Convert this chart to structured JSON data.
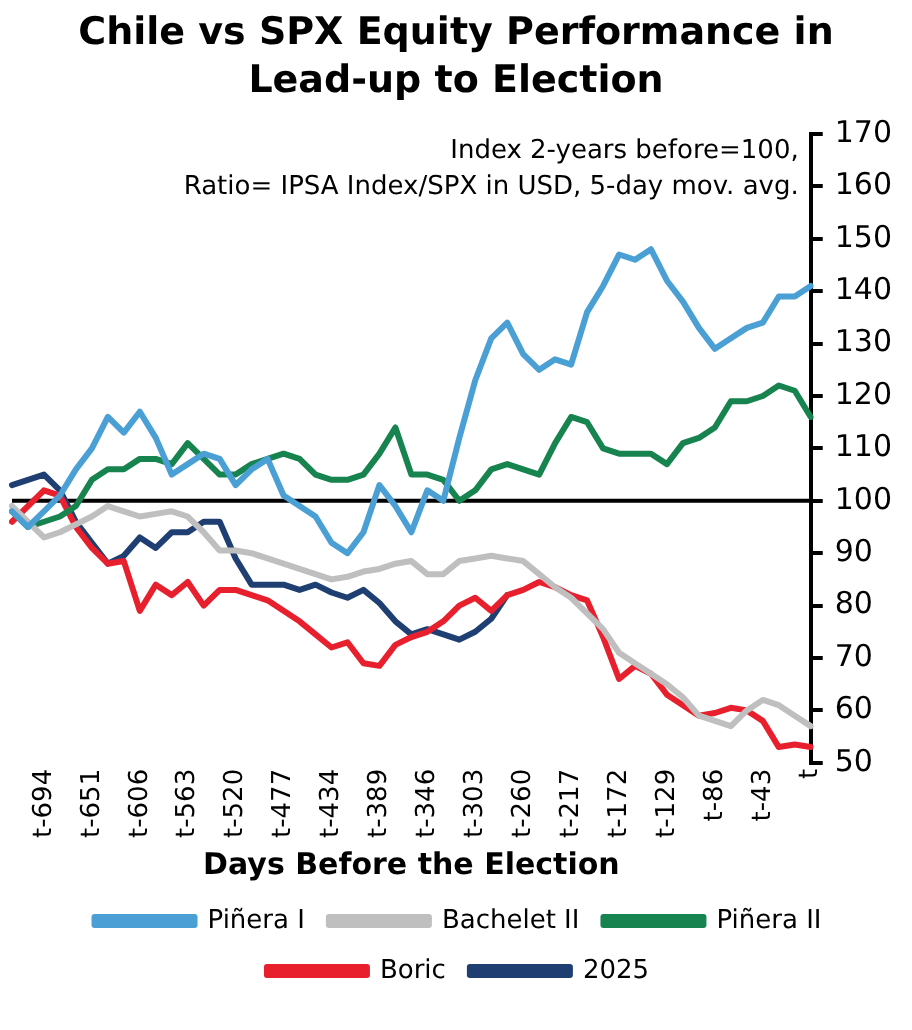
{
  "chart_data": {
    "type": "line",
    "title": "Chile vs SPX Equity Performance in Lead-up to Election",
    "xlabel": "Days Before the Election",
    "annotations": [
      "Index 2-years before=100,",
      "Ratio= IPSA Index/SPX in USD, 5-day mov. avg."
    ],
    "categories": [
      null,
      null,
      "t-694",
      null,
      null,
      "t-651",
      null,
      null,
      "t-606",
      null,
      null,
      "t-563",
      null,
      null,
      "t-520",
      null,
      null,
      "t-477",
      null,
      null,
      "t-434",
      null,
      null,
      "t-389",
      null,
      null,
      "t-346",
      null,
      null,
      "t-303",
      null,
      null,
      "t-260",
      null,
      null,
      "t-217",
      null,
      null,
      "t-172",
      null,
      null,
      "t-129",
      null,
      null,
      "t-86",
      null,
      null,
      "t-43",
      null,
      null,
      "t"
    ],
    "ylim": [
      50,
      170
    ],
    "yticks": [
      50,
      60,
      70,
      80,
      90,
      100,
      110,
      120,
      130,
      140,
      150,
      160,
      170
    ],
    "ref_lines": [
      {
        "axis": "y",
        "value": 100,
        "color": "#000000"
      }
    ],
    "grid": false,
    "legend": "bottom",
    "marker": "none",
    "line_style": "solid",
    "series": [
      {
        "name": "Piñera I",
        "color": "#4a9fd4",
        "values": [
          98,
          95,
          98,
          101,
          106,
          110,
          116,
          113,
          117,
          112,
          105,
          107,
          109,
          108,
          103,
          106,
          108,
          101,
          99,
          97,
          92,
          90,
          94,
          103,
          99,
          94,
          102,
          100,
          112,
          123,
          131,
          134,
          128,
          125,
          127,
          126,
          136,
          141,
          147,
          146,
          148,
          142,
          138,
          133,
          129,
          131,
          133,
          134,
          139,
          139,
          141
        ]
      },
      {
        "name": "Bachelet II",
        "color": "#bfbfbf",
        "values": [
          99,
          96,
          93,
          94,
          95.5,
          97,
          99,
          98,
          97,
          97.5,
          98,
          97,
          94,
          90.5,
          90.5,
          90,
          89,
          88,
          87,
          86,
          85,
          85.5,
          86.5,
          87,
          88,
          88.5,
          86,
          86,
          88.5,
          89,
          89.5,
          89,
          88.5,
          86,
          83.5,
          81.5,
          78.5,
          75.5,
          71,
          69,
          67,
          65,
          62.5,
          59,
          58,
          57,
          60,
          62,
          61,
          59,
          57
        ]
      },
      {
        "name": "Piñera II",
        "color": "#17834f",
        "values": [
          98,
          95,
          96,
          97,
          99,
          104,
          106,
          106,
          108,
          108,
          107,
          111,
          108,
          105,
          105,
          107,
          108,
          109,
          108,
          105,
          104,
          104,
          105,
          109,
          114,
          105,
          105,
          104,
          100,
          102,
          106,
          107,
          106,
          105,
          111,
          116,
          115,
          110,
          109,
          109,
          109,
          107,
          111,
          112,
          114,
          119,
          119,
          120,
          122,
          121,
          116
        ]
      },
      {
        "name": "Boric",
        "color": "#e8202e",
        "values": [
          96,
          99,
          102,
          101,
          95,
          91,
          88,
          88.5,
          79,
          84,
          82,
          84.5,
          80,
          83,
          83,
          82,
          81,
          79,
          77,
          74.5,
          72,
          73,
          69,
          68.5,
          72.5,
          74,
          75,
          77,
          80,
          81.5,
          79,
          82,
          83,
          84.5,
          83.5,
          82,
          81,
          74,
          66,
          68.5,
          67,
          63,
          61,
          59,
          59.5,
          60.5,
          60,
          58,
          53,
          53.5,
          53
        ]
      },
      {
        "name": "2025",
        "color": "#1f3f73",
        "values": [
          103,
          104,
          105,
          102,
          96,
          92,
          88,
          89.5,
          93,
          91,
          94,
          94,
          96,
          96,
          89,
          84,
          84,
          84,
          83,
          84,
          82.5,
          81.5,
          83,
          80.5,
          77,
          74.5,
          75.5,
          74.5,
          73.5,
          75,
          77.5,
          82,
          null,
          null,
          null,
          null,
          null,
          null,
          null,
          null,
          null,
          null,
          null,
          null,
          null,
          null,
          null,
          null,
          null,
          null,
          null
        ]
      }
    ]
  }
}
